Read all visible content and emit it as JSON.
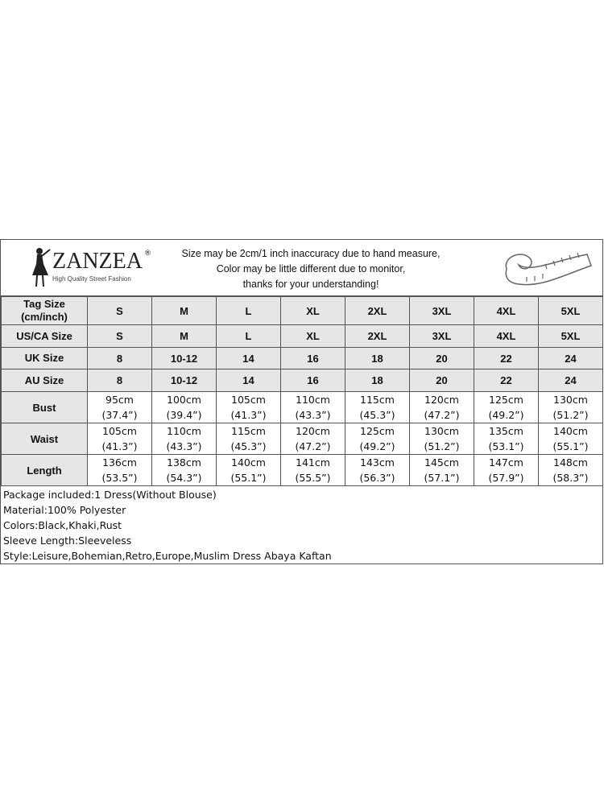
{
  "brand": {
    "name": "ZANZEA",
    "registered": "®",
    "tagline": "High Quality Street Fashion"
  },
  "notes": [
    "Size may be 2cm/1 inch inaccuracy due to hand measure,",
    "Color may be little different due to monitor,",
    "thanks for your understanding!"
  ],
  "size_rows": [
    {
      "label": [
        "Tag Size",
        "(cm/inch)"
      ],
      "values": [
        "S",
        "M",
        "L",
        "XL",
        "2XL",
        "3XL",
        "4XL",
        "5XL"
      ]
    },
    {
      "label": [
        "US/CA Size"
      ],
      "values": [
        "S",
        "M",
        "L",
        "XL",
        "2XL",
        "3XL",
        "4XL",
        "5XL"
      ]
    },
    {
      "label": [
        "UK Size"
      ],
      "values": [
        "8",
        "10-12",
        "14",
        "16",
        "18",
        "20",
        "22",
        "24"
      ]
    },
    {
      "label": [
        "AU Size"
      ],
      "values": [
        "8",
        "10-12",
        "14",
        "16",
        "18",
        "20",
        "22",
        "24"
      ]
    }
  ],
  "measure_rows": [
    {
      "label": "Bust",
      "values": [
        [
          "95cm",
          "(37.4”)"
        ],
        [
          "100cm",
          "(39.4”)"
        ],
        [
          "105cm",
          "(41.3”)"
        ],
        [
          "110cm",
          "(43.3”)"
        ],
        [
          "115cm",
          "(45.3”)"
        ],
        [
          "120cm",
          "(47.2”)"
        ],
        [
          "125cm",
          "(49.2”)"
        ],
        [
          "130cm",
          "(51.2”)"
        ]
      ]
    },
    {
      "label": "Waist",
      "values": [
        [
          "105cm",
          "(41.3”)"
        ],
        [
          "110cm",
          "(43.3”)"
        ],
        [
          "115cm",
          "(45.3”)"
        ],
        [
          "120cm",
          "(47.2”)"
        ],
        [
          "125cm",
          "(49.2”)"
        ],
        [
          "130cm",
          "(51.2”)"
        ],
        [
          "135cm",
          "(53.1”)"
        ],
        [
          "140cm",
          "(55.1”)"
        ]
      ]
    },
    {
      "label": "Length",
      "values": [
        [
          "136cm",
          "(53.5”)"
        ],
        [
          "138cm",
          "(54.3”)"
        ],
        [
          "140cm",
          "(55.1”)"
        ],
        [
          "141cm",
          "(55.5”)"
        ],
        [
          "143cm",
          "(56.3”)"
        ],
        [
          "145cm",
          "(57.1”)"
        ],
        [
          "147cm",
          "(57.9”)"
        ],
        [
          "148cm",
          "(58.3”)"
        ]
      ]
    }
  ],
  "info": [
    "Package included:1 Dress(Without Blouse)",
    "Material:100% Polyester",
    "Colors:Black,Khaki,Rust",
    "Sleeve Length:Sleeveless",
    "Style:Leisure,Bohemian,Retro,Europe,Muslim Dress Abaya Kaftan"
  ],
  "colors": {
    "header_bg": "#e6e6e6",
    "border": "#555555"
  }
}
